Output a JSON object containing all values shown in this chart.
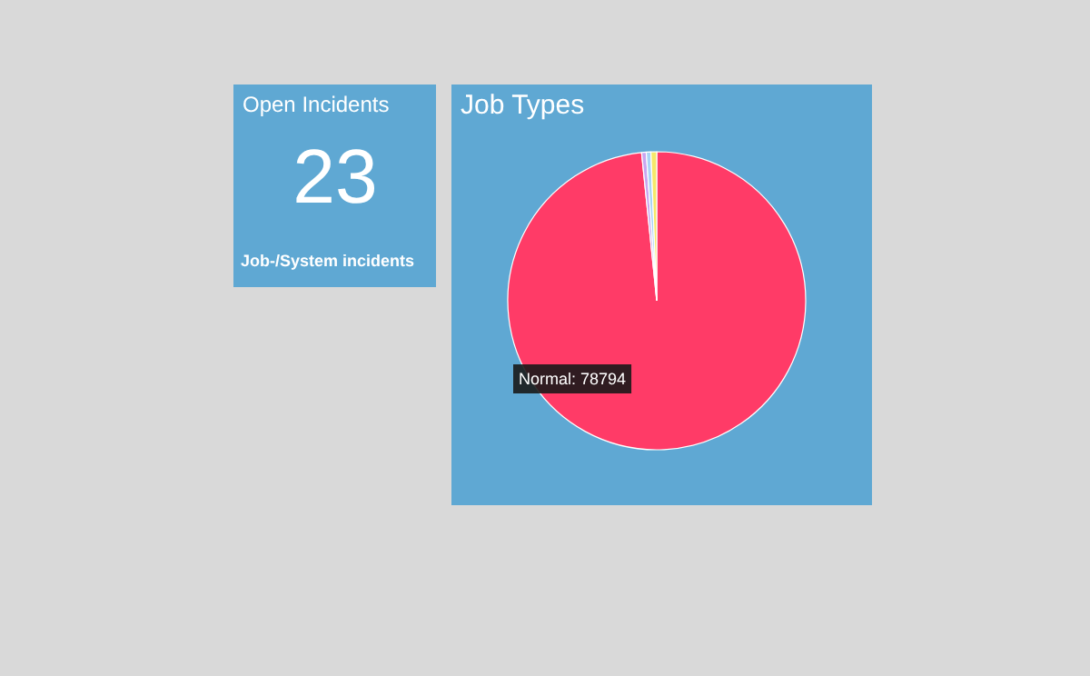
{
  "chart_data": [
    {
      "type": "other",
      "title": "Open Incidents",
      "annotations": [
        "23",
        "Job-/System incidents"
      ]
    },
    {
      "type": "pie",
      "title": "Job Types",
      "categories": [
        "Normal",
        null,
        null,
        null
      ],
      "values": [
        78794,
        400,
        400,
        500
      ],
      "colors": [
        "#ff3b67",
        "#c9a6f0",
        "#a9d4f5",
        "#f5e86a"
      ],
      "value_labels": [
        ": 78794",
        null,
        null,
        null
      ]
    }
  ]
}
